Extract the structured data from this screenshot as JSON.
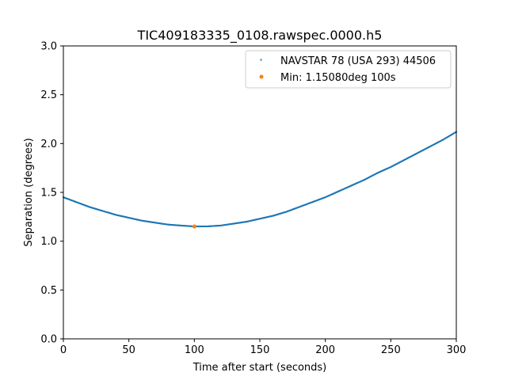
{
  "chart_data": {
    "type": "scatter",
    "title": "TIC409183335_0108.rawspec.0000.h5",
    "xlabel": "Time after start (seconds)",
    "ylabel": "Separation (degrees)",
    "xlim": [
      0,
      300
    ],
    "ylim": [
      0,
      3.0
    ],
    "xticks": [
      0,
      50,
      100,
      150,
      200,
      250,
      300
    ],
    "xtick_labels": [
      "0",
      "50",
      "100",
      "150",
      "200",
      "250",
      "300"
    ],
    "yticks": [
      0.0,
      0.5,
      1.0,
      1.5,
      2.0,
      2.5,
      3.0
    ],
    "ytick_labels": [
      "0.0",
      "0.5",
      "1.0",
      "1.5",
      "2.0",
      "2.5",
      "3.0"
    ],
    "grid": false,
    "legend_position": "top-right",
    "series": [
      {
        "name": "NAVSTAR 78 (USA 293) 44506",
        "color": "#1f77b4",
        "marker": "small-dot",
        "x": [
          0,
          10,
          20,
          30,
          40,
          50,
          60,
          70,
          80,
          90,
          100,
          110,
          120,
          130,
          140,
          150,
          160,
          170,
          180,
          190,
          200,
          210,
          220,
          230,
          240,
          250,
          260,
          270,
          280,
          290,
          300
        ],
        "y": [
          1.45,
          1.4,
          1.35,
          1.31,
          1.27,
          1.24,
          1.21,
          1.19,
          1.17,
          1.16,
          1.151,
          1.152,
          1.16,
          1.18,
          1.2,
          1.23,
          1.26,
          1.3,
          1.35,
          1.4,
          1.45,
          1.51,
          1.57,
          1.63,
          1.7,
          1.76,
          1.83,
          1.9,
          1.97,
          2.04,
          2.12
        ]
      },
      {
        "name": "Min: 1.15080deg 100s",
        "color": "#ff7f0e",
        "marker": "dot",
        "x": [
          100
        ],
        "y": [
          1.1508
        ]
      }
    ]
  }
}
